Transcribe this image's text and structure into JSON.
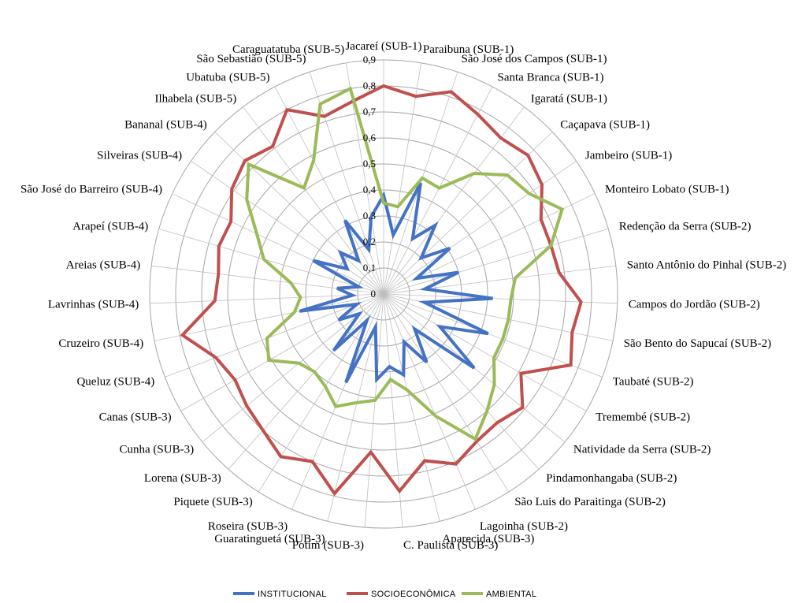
{
  "chart_data": {
    "type": "radar",
    "title": "",
    "r_range": [
      0,
      0.9
    ],
    "r_ticks": [
      "0",
      "0,1",
      "0,2",
      "0,3",
      "0,4",
      "0,5",
      "0,6",
      "0,7",
      "0,8",
      "0,9"
    ],
    "grid": true,
    "legend_position": "bottom",
    "categories": [
      "Jacareí (SUB-1)",
      "Paraibuna (SUB-1)",
      "São José dos Campos (SUB-1)",
      "Santa Branca (SUB-1)",
      "Igaratá (SUB-1)",
      "Caçapava (SUB-1)",
      "Jambeiro (SUB-1)",
      "Monteiro Lobato (SUB-1)",
      "Redenção da Serra (SUB-2)",
      "Santo Antônio do Pinhal (SUB-2)",
      "Campos do Jordão (SUB-2)",
      "São Bento do Sapucaí (SUB-2)",
      "Taubaté (SUB-2)",
      "Tremembé (SUB-2)",
      "Natividade da Serra (SUB-2)",
      "Pindamonhangaba (SUB-2)",
      "São Luis do Paraitinga (SUB-2)",
      "Lagoinha (SUB-2)",
      "Aparecida (SUB-3)",
      "C. Paulista (SUB-3)",
      "Potim (SUB-3)",
      "Guaratinguetá (SUB-3)",
      "Roseira (SUB-3)",
      "Piquete (SUB-3)",
      "Lorena (SUB-3)",
      "Cunha (SUB-3)",
      "Canas (SUB-3)",
      "Queluz (SUB-4)",
      "Cruzeiro (SUB-4)",
      "Lavrinhas (SUB-4)",
      "Areias (SUB-4)",
      "Arapeí (SUB-4)",
      "São José do Barreiro (SUB-4)",
      "Silveiras (SUB-4)",
      "Bananal (SUB-4)",
      "Ilhabela (SUB-5)",
      "Ubatuba (SUB-5)",
      "São Sebastião (SUB-5)",
      "Caraguatatuba (SUB-5)"
    ],
    "series": [
      {
        "name": "INSTITUCIONAL",
        "color": "#4472C4",
        "values": [
          0.38,
          0.23,
          0.45,
          0.24,
          0.33,
          0.2,
          0.31,
          0.14,
          0.3,
          0.16,
          0.42,
          0.16,
          0.43,
          0.25,
          0.45,
          0.18,
          0.31,
          0.2,
          0.32,
          0.28,
          0.33,
          0.13,
          0.37,
          0.12,
          0.29,
          0.12,
          0.2,
          0.11,
          0.33,
          0.12,
          0.18,
          0.1,
          0.3,
          0.17,
          0.23,
          0.16,
          0.32,
          0.18,
          0.3
        ]
      },
      {
        "name": "SOCIOECONÔMICA",
        "color": "#C0504D",
        "values": [
          0.8,
          0.77,
          0.82,
          0.78,
          0.75,
          0.77,
          0.74,
          0.67,
          0.67,
          0.68,
          0.76,
          0.74,
          0.77,
          0.61,
          0.69,
          0.66,
          0.67,
          0.71,
          0.66,
          0.76,
          0.61,
          0.79,
          0.7,
          0.74,
          0.7,
          0.68,
          0.66,
          0.69,
          0.79,
          0.65,
          0.64,
          0.66,
          0.65,
          0.71,
          0.74,
          0.71,
          0.8,
          0.72,
          0.75
        ]
      },
      {
        "name": "AMBIENTAL",
        "color": "#9BBB59",
        "values": [
          0.35,
          0.34,
          0.47,
          0.46,
          0.58,
          0.66,
          0.68,
          0.76,
          0.67,
          0.51,
          0.49,
          0.49,
          0.49,
          0.49,
          0.55,
          0.6,
          0.66,
          0.51,
          0.38,
          0.33,
          0.41,
          0.43,
          0.47,
          0.42,
          0.4,
          0.42,
          0.51,
          0.48,
          0.35,
          0.32,
          0.36,
          0.48,
          0.54,
          0.64,
          0.72,
          0.51,
          0.58,
          0.77,
          0.8
        ]
      }
    ]
  }
}
